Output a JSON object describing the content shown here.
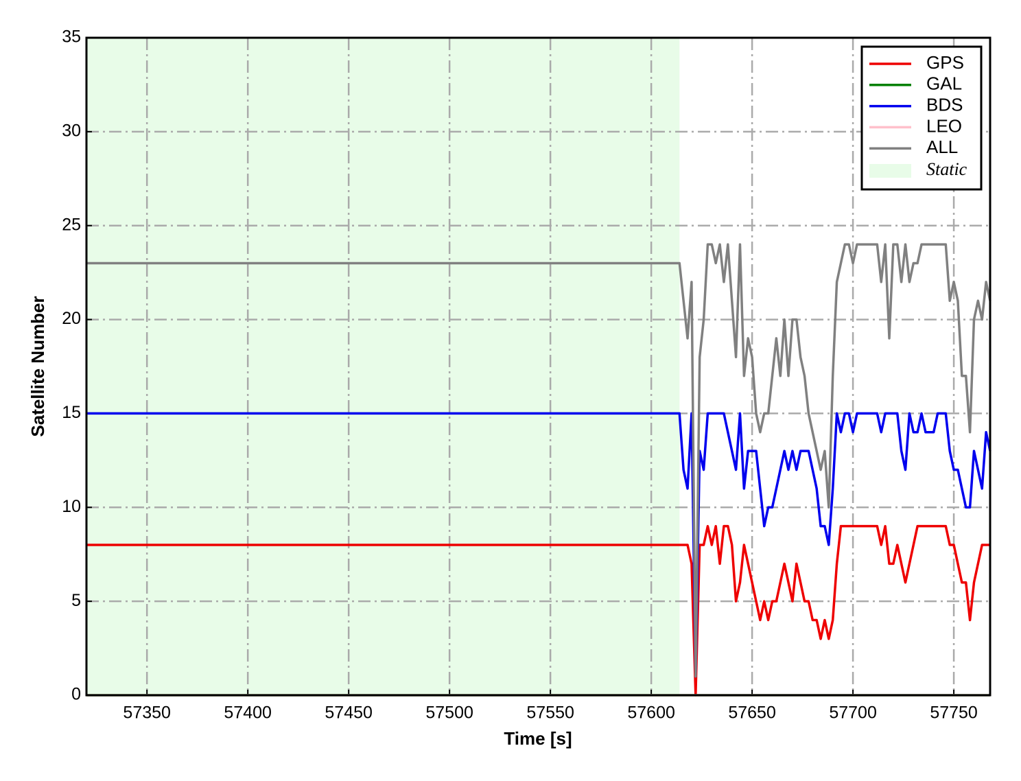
{
  "chart_data": {
    "type": "line",
    "xlabel": "Time [s]",
    "ylabel": "Satellite Number",
    "x": [
      57320,
      57614,
      57616,
      57618,
      57620,
      57622,
      57624,
      57626,
      57628,
      57630,
      57632,
      57634,
      57636,
      57638,
      57640,
      57642,
      57644,
      57646,
      57648,
      57650,
      57652,
      57654,
      57656,
      57658,
      57660,
      57662,
      57664,
      57666,
      57668,
      57670,
      57672,
      57674,
      57676,
      57678,
      57680,
      57682,
      57684,
      57686,
      57688,
      57690,
      57692,
      57694,
      57696,
      57698,
      57700,
      57702,
      57704,
      57706,
      57708,
      57710,
      57712,
      57714,
      57716,
      57718,
      57720,
      57722,
      57724,
      57726,
      57728,
      57730,
      57732,
      57734,
      57736,
      57738,
      57740,
      57742,
      57744,
      57746,
      57748,
      57750,
      57752,
      57754,
      57756,
      57758,
      57760,
      57762,
      57764,
      57766,
      57768
    ],
    "series": [
      {
        "name": "GPS",
        "color": "#ee0000",
        "values": [
          8,
          8,
          8,
          8,
          7,
          0,
          8,
          8,
          9,
          8,
          9,
          7,
          9,
          9,
          8,
          5,
          6,
          8,
          7,
          6,
          5,
          4,
          5,
          4,
          5,
          5,
          6,
          7,
          6,
          5,
          7,
          6,
          5,
          5,
          4,
          4,
          3,
          4,
          3,
          4,
          7,
          9,
          9,
          9,
          9,
          9,
          9,
          9,
          9,
          9,
          9,
          8,
          9,
          7,
          7,
          8,
          7,
          6,
          7,
          8,
          9,
          9,
          9,
          9,
          9,
          9,
          9,
          9,
          8,
          8,
          7,
          6,
          6,
          4,
          6,
          7,
          8,
          8,
          8
        ]
      },
      {
        "name": "GAL",
        "color": "#008000",
        "values": [
          0,
          0,
          0,
          0,
          0,
          0,
          0,
          0,
          0,
          0,
          0,
          0,
          0,
          0,
          0,
          0,
          0,
          0,
          0,
          0,
          0,
          0,
          0,
          0,
          0,
          0,
          0,
          0,
          0,
          0,
          0,
          0,
          0,
          0,
          0,
          0,
          0,
          0,
          0,
          0,
          0,
          0,
          0,
          0,
          0,
          0,
          0,
          0,
          0,
          0,
          0,
          0,
          0,
          0,
          0,
          0,
          0,
          0,
          0,
          0,
          0,
          0,
          0,
          0,
          0,
          0,
          0,
          0,
          0,
          0,
          0,
          0,
          0,
          0,
          0,
          0,
          0,
          0,
          0
        ]
      },
      {
        "name": "BDS",
        "color": "#0000ee",
        "values": [
          15,
          15,
          12,
          11,
          15,
          1,
          13,
          12,
          15,
          15,
          15,
          15,
          15,
          14,
          13,
          12,
          15,
          11,
          13,
          13,
          13,
          11,
          9,
          10,
          10,
          11,
          12,
          13,
          12,
          13,
          12,
          13,
          13,
          13,
          12,
          11,
          9,
          9,
          8,
          11,
          15,
          14,
          15,
          15,
          14,
          15,
          15,
          15,
          15,
          15,
          15,
          14,
          15,
          15,
          15,
          15,
          13,
          12,
          15,
          14,
          14,
          15,
          14,
          14,
          14,
          15,
          15,
          15,
          13,
          12,
          12,
          11,
          10,
          10,
          13,
          12,
          11,
          14,
          13
        ]
      },
      {
        "name": "LEO",
        "color": "#ffc0cb",
        "values": [
          0,
          0,
          0,
          0,
          0,
          0,
          0,
          0,
          0,
          0,
          0,
          0,
          0,
          0,
          0,
          0,
          0,
          0,
          0,
          0,
          0,
          0,
          0,
          0,
          0,
          0,
          0,
          0,
          0,
          0,
          0,
          0,
          0,
          0,
          0,
          0,
          0,
          0,
          0,
          0,
          0,
          0,
          0,
          0,
          0,
          0,
          0,
          0,
          0,
          0,
          0,
          0,
          0,
          0,
          0,
          0,
          0,
          0,
          0,
          0,
          0,
          0,
          0,
          0,
          0,
          0,
          0,
          0,
          0,
          0,
          0,
          0,
          0,
          0,
          0,
          0,
          0,
          0,
          0
        ]
      },
      {
        "name": "ALL",
        "color": "#808080",
        "values": [
          23,
          23,
          21,
          19,
          22,
          1,
          18,
          20,
          24,
          24,
          23,
          24,
          22,
          24,
          21,
          18,
          24,
          17,
          19,
          18,
          15,
          14,
          15,
          15,
          17,
          19,
          17,
          20,
          17,
          20,
          20,
          18,
          17,
          15,
          14,
          13,
          12,
          13,
          10,
          17,
          22,
          23,
          24,
          24,
          23,
          24,
          24,
          24,
          24,
          24,
          24,
          22,
          24,
          19,
          24,
          24,
          22,
          24,
          22,
          23,
          23,
          24,
          24,
          24,
          24,
          24,
          24,
          24,
          21,
          22,
          21,
          17,
          17,
          14,
          20,
          21,
          20,
          22,
          21
        ]
      }
    ],
    "static_span": [
      57320,
      57614
    ],
    "static_label": "Static",
    "static_color": "#e8fce8",
    "xlim": [
      57320,
      57768
    ],
    "xticks": [
      57350,
      57400,
      57450,
      57500,
      57550,
      57600,
      57650,
      57700,
      57750
    ],
    "ylim": [
      0,
      35
    ],
    "yticks": [
      0,
      5,
      10,
      15,
      20,
      25,
      30,
      35
    ],
    "grid": true,
    "legend": "upper right"
  }
}
